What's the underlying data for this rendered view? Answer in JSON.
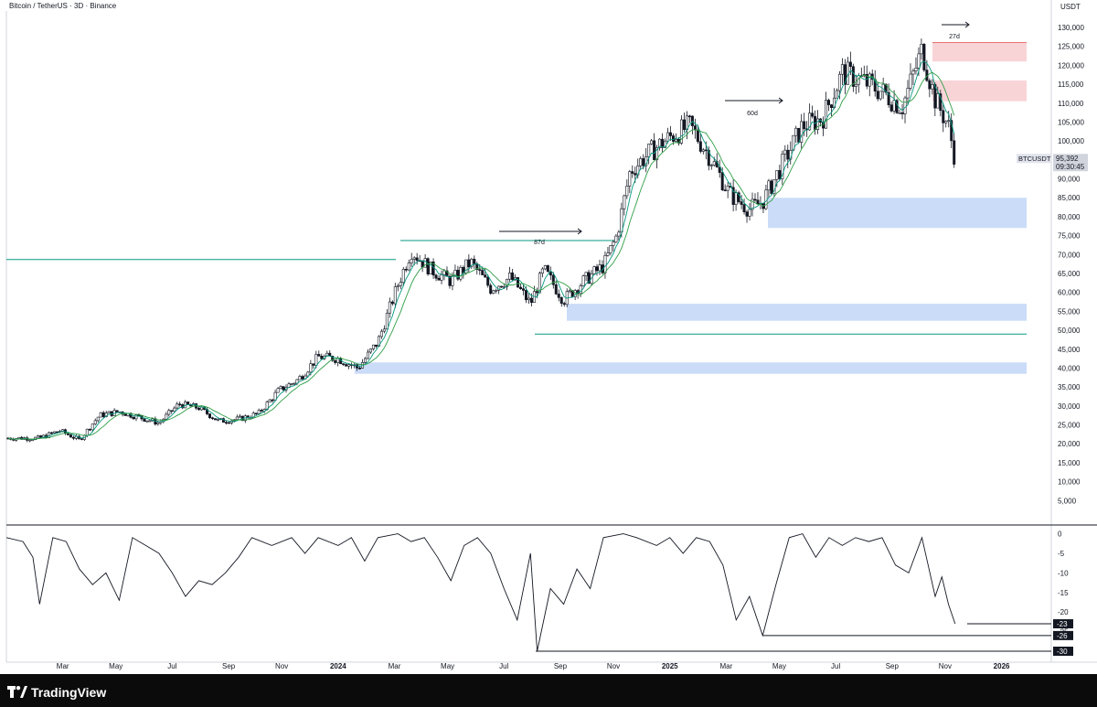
{
  "header": {
    "symbol_title": "Bitcoin / TetherUS · 3D · Binance",
    "price_unit": "USDT"
  },
  "footer": {
    "brand": "TradingView"
  },
  "price_label": {
    "symbol": "BTCUSDT",
    "value": "95,392",
    "countdown": "09:30:45"
  },
  "chart_data": [
    {
      "type": "line",
      "title": "Bitcoin / TetherUS · 3D · Binance",
      "ylabel": "USDT",
      "ylim": [
        0,
        130000
      ],
      "x_ticks": [
        "Mar",
        "May",
        "Jul",
        "Sep",
        "Nov",
        "2024",
        "Mar",
        "May",
        "Jul",
        "Sep",
        "Nov",
        "2025",
        "Mar",
        "May",
        "Jul",
        "Sep",
        "Nov",
        "2026"
      ],
      "y_ticks": [
        "130,000",
        "125,000",
        "120,000",
        "115,000",
        "110,000",
        "105,000",
        "100,000",
        "95,000",
        "90,000",
        "85,000",
        "80,000",
        "75,000",
        "70,000",
        "65,000",
        "60,000",
        "55,000",
        "50,000",
        "45,000",
        "40,000",
        "35,000",
        "30,000",
        "25,000",
        "20,000",
        "15,000",
        "10,000",
        "5,000"
      ],
      "series": [
        {
          "name": "BTCUSDT",
          "values": [
            [
              2023.1,
              21500
            ],
            [
              2023.16,
              23500
            ],
            [
              2023.22,
              21000
            ],
            [
              2023.28,
              27500
            ],
            [
              2023.34,
              28500
            ],
            [
              2023.4,
              27000
            ],
            [
              2023.46,
              25500
            ],
            [
              2023.52,
              30500
            ],
            [
              2023.58,
              29500
            ],
            [
              2023.64,
              26000
            ],
            [
              2023.7,
              26500
            ],
            [
              2023.76,
              28000
            ],
            [
              2023.82,
              34000
            ],
            [
              2023.88,
              37000
            ],
            [
              2023.94,
              43000
            ],
            [
              2024.0,
              42500
            ],
            [
              2024.06,
              40000
            ],
            [
              2024.12,
              47000
            ],
            [
              2024.18,
              62000
            ],
            [
              2024.22,
              71000
            ],
            [
              2024.28,
              66000
            ],
            [
              2024.34,
              63000
            ],
            [
              2024.4,
              68000
            ],
            [
              2024.46,
              61000
            ],
            [
              2024.52,
              64000
            ],
            [
              2024.58,
              57000
            ],
            [
              2024.62,
              66000
            ],
            [
              2024.68,
              58000
            ],
            [
              2024.74,
              63000
            ],
            [
              2024.8,
              67000
            ],
            [
              2024.84,
              75000
            ],
            [
              2024.88,
              92000
            ],
            [
              2024.94,
              97000
            ],
            [
              2025.0,
              101000
            ],
            [
              2025.06,
              104000
            ],
            [
              2025.12,
              96000
            ],
            [
              2025.18,
              86000
            ],
            [
              2025.24,
              82000
            ],
            [
              2025.28,
              84000
            ],
            [
              2025.34,
              94000
            ],
            [
              2025.4,
              104000
            ],
            [
              2025.46,
              106000
            ],
            [
              2025.52,
              118000
            ],
            [
              2025.58,
              116000
            ],
            [
              2025.64,
              113000
            ],
            [
              2025.7,
              109000
            ],
            [
              2025.76,
              124000
            ],
            [
              2025.8,
              111000
            ],
            [
              2025.84,
              104000
            ],
            [
              2025.86,
              95392
            ]
          ]
        }
      ],
      "annotations": [
        {
          "text": "87d",
          "type": "range-arrow"
        },
        {
          "text": "60d",
          "type": "range-arrow"
        },
        {
          "text": "27d",
          "type": "range-arrow"
        }
      ],
      "zones": [
        {
          "color": "#f7c6c9",
          "range": [
            121000,
            126000
          ]
        },
        {
          "color": "#f7c6c9",
          "range": [
            110500,
            116000
          ]
        },
        {
          "color": "#b9d0f5",
          "range": [
            77000,
            85000
          ]
        },
        {
          "color": "#b9d0f5",
          "range": [
            52500,
            57000
          ]
        },
        {
          "color": "#b9d0f5",
          "range": [
            38500,
            41500
          ]
        }
      ],
      "levels": [
        {
          "color": "#089981",
          "value": 68700
        },
        {
          "color": "#089981",
          "value": 73700
        },
        {
          "color": "#089981",
          "value": 49000
        }
      ]
    },
    {
      "type": "line",
      "ylim": [
        -30,
        2
      ],
      "y_ticks": [
        "0",
        "-5",
        "-10",
        "-15",
        "-20",
        "-25"
      ],
      "series": [
        {
          "name": "oscillator",
          "values": [
            [
              2023.0,
              -1
            ],
            [
              2023.05,
              -2
            ],
            [
              2023.08,
              -6
            ],
            [
              2023.1,
              -18
            ],
            [
              2023.14,
              -1
            ],
            [
              2023.18,
              -2
            ],
            [
              2023.22,
              -9
            ],
            [
              2023.26,
              -13
            ],
            [
              2023.3,
              -10
            ],
            [
              2023.34,
              -17
            ],
            [
              2023.38,
              -1
            ],
            [
              2023.42,
              -3
            ],
            [
              2023.46,
              -5
            ],
            [
              2023.5,
              -10
            ],
            [
              2023.54,
              -16
            ],
            [
              2023.58,
              -12
            ],
            [
              2023.62,
              -13
            ],
            [
              2023.66,
              -10
            ],
            [
              2023.7,
              -6
            ],
            [
              2023.74,
              -1
            ],
            [
              2023.8,
              -3
            ],
            [
              2023.86,
              -1
            ],
            [
              2023.9,
              -5
            ],
            [
              2023.94,
              -1
            ],
            [
              2024.0,
              -3
            ],
            [
              2024.04,
              -1
            ],
            [
              2024.08,
              -7
            ],
            [
              2024.12,
              -1
            ],
            [
              2024.18,
              0
            ],
            [
              2024.22,
              -2
            ],
            [
              2024.26,
              -1
            ],
            [
              2024.3,
              -6
            ],
            [
              2024.34,
              -12
            ],
            [
              2024.38,
              -3
            ],
            [
              2024.42,
              -1
            ],
            [
              2024.46,
              -5
            ],
            [
              2024.5,
              -14
            ],
            [
              2024.54,
              -22
            ],
            [
              2024.58,
              -5
            ],
            [
              2024.6,
              -30
            ],
            [
              2024.64,
              -14
            ],
            [
              2024.68,
              -18
            ],
            [
              2024.72,
              -9
            ],
            [
              2024.76,
              -14
            ],
            [
              2024.8,
              -1
            ],
            [
              2024.86,
              0
            ],
            [
              2024.9,
              -1
            ],
            [
              2024.96,
              -3
            ],
            [
              2025.0,
              -1
            ],
            [
              2025.04,
              -5
            ],
            [
              2025.08,
              -1
            ],
            [
              2025.12,
              -2
            ],
            [
              2025.16,
              -8
            ],
            [
              2025.2,
              -22
            ],
            [
              2025.24,
              -16
            ],
            [
              2025.28,
              -26
            ],
            [
              2025.32,
              -13
            ],
            [
              2025.36,
              -1
            ],
            [
              2025.4,
              0
            ],
            [
              2025.44,
              -6
            ],
            [
              2025.48,
              -1
            ],
            [
              2025.52,
              -3
            ],
            [
              2025.56,
              -1
            ],
            [
              2025.6,
              -2
            ],
            [
              2025.64,
              -1
            ],
            [
              2025.68,
              -8
            ],
            [
              2025.72,
              -10
            ],
            [
              2025.76,
              -1
            ],
            [
              2025.8,
              -16
            ],
            [
              2025.82,
              -11
            ],
            [
              2025.84,
              -18
            ],
            [
              2025.86,
              -23
            ]
          ]
        }
      ],
      "markers": [
        "-23",
        "-26",
        "-30"
      ]
    }
  ]
}
